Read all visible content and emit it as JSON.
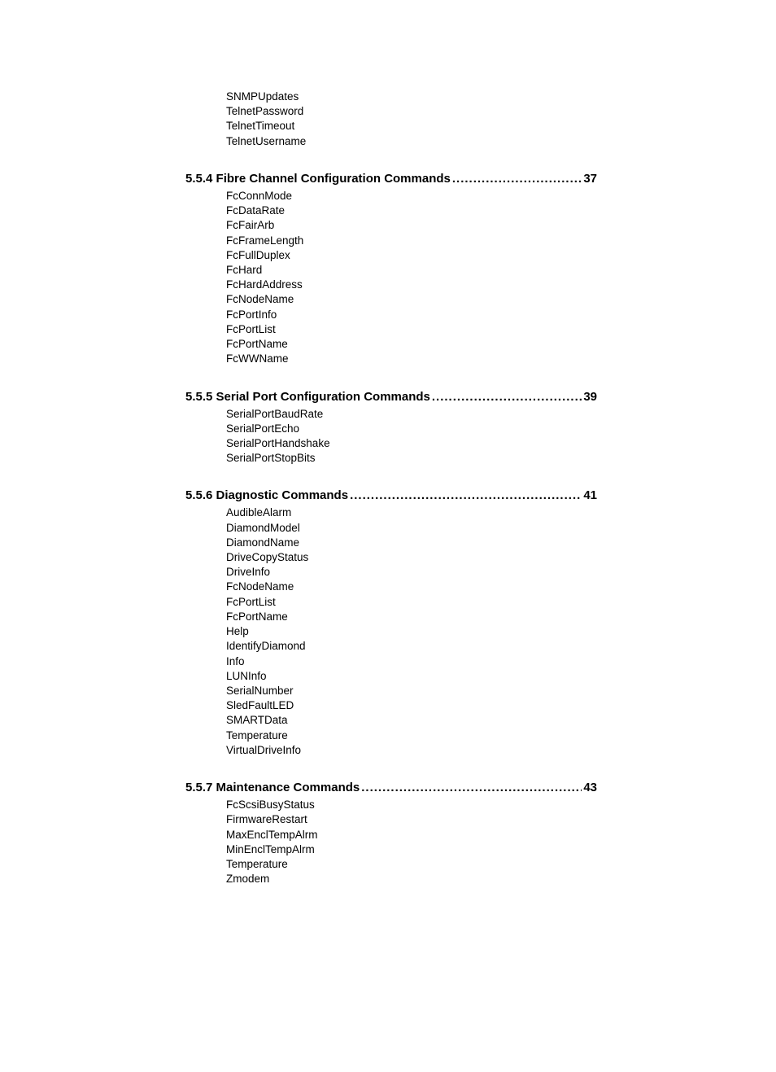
{
  "intro_items": [
    "SNMPUpdates",
    "TelnetPassword",
    "TelnetTimeout",
    "TelnetUsername"
  ],
  "sections": [
    {
      "num": "5.5.4",
      "title": "Fibre Channel Configuration Commands",
      "page": "37",
      "items": [
        "FcConnMode",
        "FcDataRate",
        "FcFairArb",
        "FcFrameLength",
        "FcFullDuplex",
        "FcHard",
        "FcHardAddress",
        "FcNodeName",
        "FcPortInfo",
        "FcPortList",
        "FcPortName",
        "FcWWName"
      ]
    },
    {
      "num": "5.5.5",
      "title": "Serial Port Configuration Commands",
      "page": "39",
      "items": [
        "SerialPortBaudRate",
        "SerialPortEcho",
        "SerialPortHandshake",
        "SerialPortStopBits"
      ]
    },
    {
      "num": "5.5.6",
      "title": "Diagnostic Commands",
      "page": "41",
      "items": [
        "AudibleAlarm",
        "DiamondModel",
        "DiamondName",
        "DriveCopyStatus",
        "DriveInfo",
        "FcNodeName",
        "FcPortList",
        "FcPortName",
        "Help",
        "IdentifyDiamond",
        "Info",
        "LUNInfo",
        "SerialNumber",
        "SledFaultLED",
        "SMARTData",
        "Temperature",
        "VirtualDriveInfo"
      ]
    },
    {
      "num": "5.5.7",
      "title": "Maintenance Commands",
      "page": "43",
      "items": [
        "FcScsiBusyStatus",
        "FirmwareRestart",
        "MaxEnclTempAlrm",
        "MinEnclTempAlrm",
        "Temperature",
        "Zmodem"
      ]
    }
  ]
}
